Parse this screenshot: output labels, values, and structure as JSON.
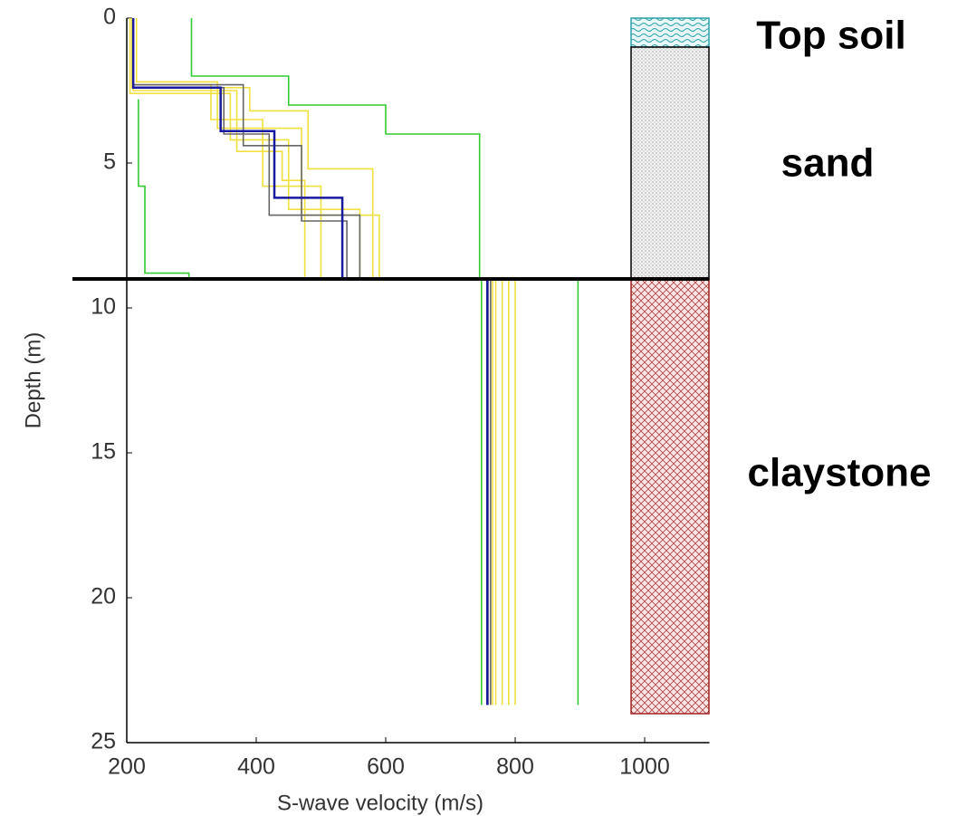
{
  "chart_data": {
    "type": "line",
    "xlabel": "S-wave velocity (m/s)",
    "ylabel": "Depth (m)",
    "xlim": [
      200,
      1100
    ],
    "xticks": [
      200,
      400,
      600,
      800,
      1000
    ],
    "ylim": [
      0,
      25
    ],
    "yticks": [
      0,
      5,
      10,
      15,
      20,
      25
    ],
    "y_inverted": true,
    "series": [
      {
        "color": "#f0e040",
        "x": [
          210,
          210,
          330,
          330,
          410,
          410,
          500,
          500,
          770,
          770
        ],
        "y": [
          0,
          2.3,
          2.3,
          3.5,
          3.5,
          5.8,
          5.8,
          9,
          9,
          23.7
        ]
      },
      {
        "color": "#f0e040",
        "x": [
          205,
          205,
          360,
          360,
          450,
          450,
          560,
          560,
          790,
          790
        ],
        "y": [
          0,
          2.6,
          2.6,
          4.2,
          4.2,
          6.6,
          6.6,
          9,
          9,
          23.7
        ]
      },
      {
        "color": "#f0e040",
        "x": [
          215,
          215,
          340,
          340,
          470,
          470,
          590,
          590,
          800,
          800
        ],
        "y": [
          0,
          2.2,
          2.2,
          3.8,
          3.8,
          6.8,
          6.8,
          9,
          9,
          23.7
        ]
      },
      {
        "color": "#f0e040",
        "x": [
          210,
          210,
          370,
          370,
          440,
          440,
          475,
          475,
          780,
          780
        ],
        "y": [
          0,
          2.5,
          2.5,
          4.6,
          4.6,
          5.6,
          5.6,
          9,
          9,
          23.7
        ]
      },
      {
        "color": "#f0e040",
        "x": [
          208,
          208,
          390,
          390,
          480,
          480,
          580,
          580,
          765,
          765
        ],
        "y": [
          0,
          2.4,
          2.4,
          3.2,
          3.2,
          5.2,
          5.2,
          9,
          9,
          23.7
        ]
      },
      {
        "color": "#666666",
        "x": [
          210,
          210,
          350,
          350,
          420,
          420,
          560,
          560,
          762,
          762
        ],
        "y": [
          0,
          2.4,
          2.4,
          4.0,
          4.0,
          6.8,
          6.8,
          9,
          9,
          23.7
        ]
      },
      {
        "color": "#666666",
        "x": [
          210,
          210,
          380,
          380,
          470,
          470,
          540,
          540,
          758,
          758
        ],
        "y": [
          0,
          2.3,
          2.3,
          4.4,
          4.4,
          7.0,
          7.0,
          9,
          9,
          23.7
        ]
      },
      {
        "color": "#33cc33",
        "x": [
          300,
          300,
          450,
          450,
          600,
          600,
          745,
          745,
          897,
          897
        ],
        "y": [
          0,
          2,
          2,
          3,
          3,
          4,
          4,
          9,
          9,
          23.7
        ]
      },
      {
        "color": "#33cc33",
        "x": [
          218,
          218,
          228,
          228,
          296,
          296,
          748,
          748
        ],
        "y": [
          2.8,
          5.8,
          5.8,
          8.8,
          8.8,
          9,
          9,
          23.7
        ]
      },
      {
        "color": "#1a1aa0",
        "x": [
          210,
          210,
          345,
          345,
          428,
          428,
          533,
          533,
          757,
          757
        ],
        "y": [
          0,
          2.4,
          2.4,
          3.9,
          3.9,
          6.2,
          6.2,
          9,
          9,
          23.7
        ]
      }
    ],
    "boundary": 9,
    "layers": [
      {
        "label": "Top soil",
        "top": 0,
        "bottom": 1
      },
      {
        "label": "sand",
        "top": 1,
        "bottom": 9
      },
      {
        "label": "claystone",
        "top": 9,
        "bottom": 24
      }
    ]
  }
}
